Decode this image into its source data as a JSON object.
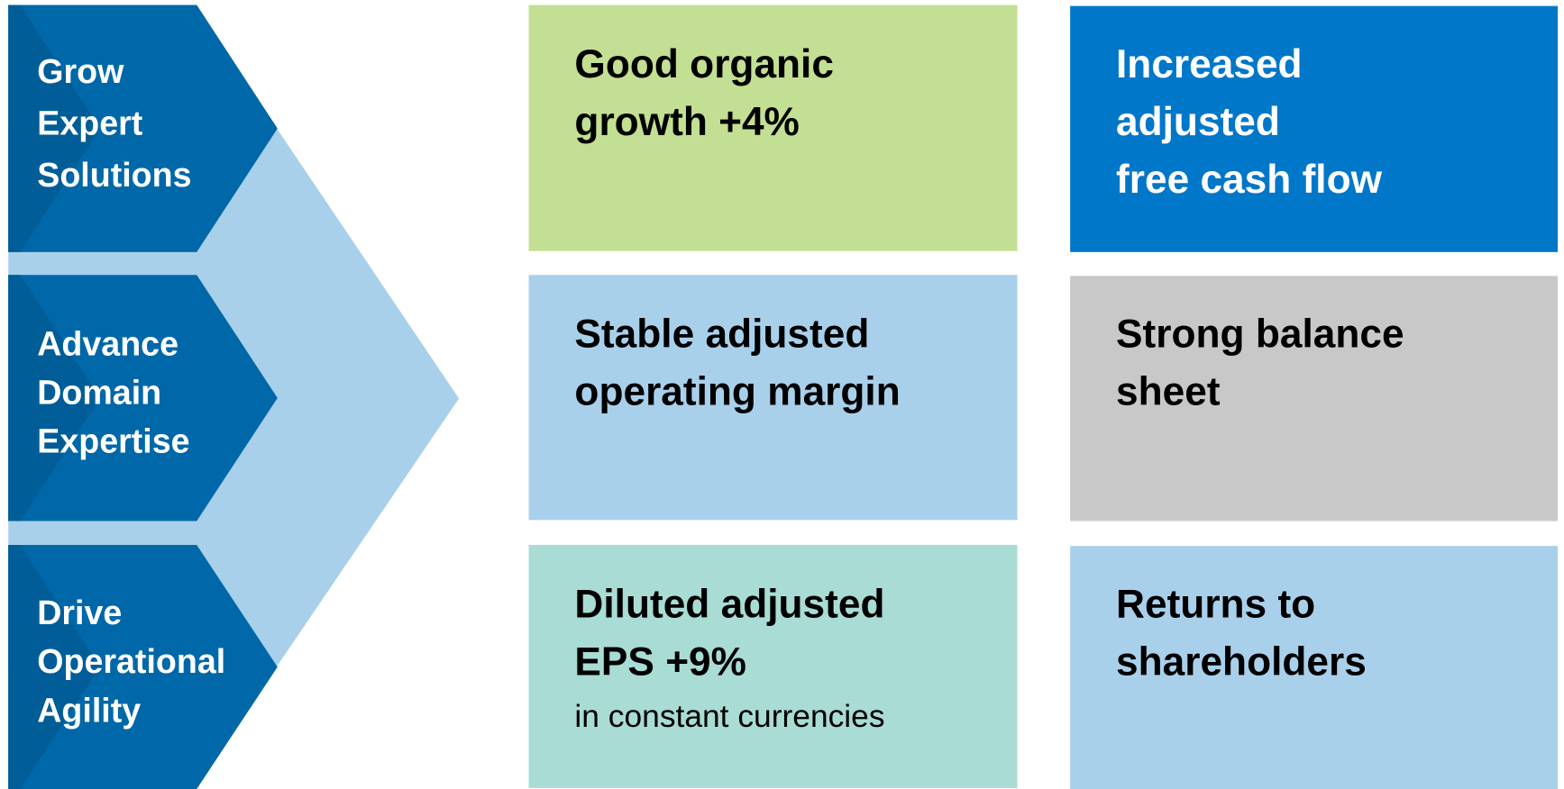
{
  "pillars": [
    {
      "lines": [
        "Grow",
        "Expert",
        "Solutions"
      ]
    },
    {
      "lines": [
        "Advance",
        "Domain",
        "Expertise"
      ]
    },
    {
      "lines": [
        "Drive",
        "Operational",
        "Agility"
      ]
    }
  ],
  "tiles": [
    {
      "lines": [
        "Good organic",
        "growth +4%"
      ],
      "color": "#c3df93",
      "text_color": "#000000"
    },
    {
      "lines": [
        "Increased",
        "adjusted",
        "free cash flow"
      ],
      "color": "#0077c8",
      "text_color": "#ffffff"
    },
    {
      "lines": [
        "Stable adjusted",
        "operating margin"
      ],
      "color": "#a9d0eb",
      "text_color": "#000000"
    },
    {
      "lines": [
        "Strong balance",
        "sheet"
      ],
      "color": "#c8c8c8",
      "text_color": "#000000"
    },
    {
      "lines": [
        "Diluted adjusted",
        "EPS +9%"
      ],
      "note": "in constant currencies",
      "color": "#a8dcd4",
      "text_color": "#000000"
    },
    {
      "lines": [
        "Returns to",
        "shareholders"
      ],
      "color": "#a9d0eb",
      "text_color": "#000000"
    }
  ]
}
